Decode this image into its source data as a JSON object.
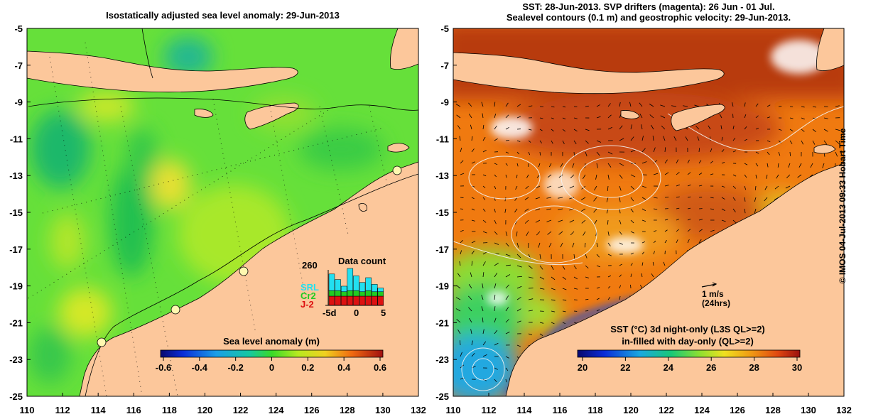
{
  "left_panel": {
    "title": "Isostatically adjusted sea level anomaly: 29-Jun-2013",
    "colorbar": {
      "label": "Sea level anomaly (m)",
      "ticks": [
        "-0.6",
        "-0.4",
        "-0.2",
        "0",
        "0.2",
        "0.4",
        "0.6"
      ]
    },
    "inset": {
      "title": "Data count",
      "max_label": "260",
      "legend": [
        {
          "label": "SRL",
          "color": "#22e0f0"
        },
        {
          "label": "Cr2",
          "color": "#22cc22"
        },
        {
          "label": "J-2",
          "color": "#dd1111"
        }
      ],
      "x_ticks": [
        "-5d",
        "0",
        "5"
      ],
      "bars": [
        {
          "srl": 0.45,
          "cr2": 0.15,
          "j2": 0.25
        },
        {
          "srl": 0.3,
          "cr2": 0.15,
          "j2": 0.25
        },
        {
          "srl": 0.15,
          "cr2": 0.12,
          "j2": 0.25
        },
        {
          "srl": 0.6,
          "cr2": 0.15,
          "j2": 0.25
        },
        {
          "srl": 0.4,
          "cr2": 0.15,
          "j2": 0.25
        },
        {
          "srl": 0.25,
          "cr2": 0.12,
          "j2": 0.25
        },
        {
          "srl": 0.35,
          "cr2": 0.15,
          "j2": 0.25
        },
        {
          "srl": 0.2,
          "cr2": 0.12,
          "j2": 0.25
        },
        {
          "srl": 0.1,
          "cr2": 0.12,
          "j2": 0.25
        }
      ]
    }
  },
  "right_panel": {
    "title_lines": [
      "SST: 28-Jun-2013. SVP drifters (magenta): 26 Jun - 01 Jul.",
      "Sealevel contours (0.1 m) and geostrophic velocity: 29-Jun-2013."
    ],
    "scale_arrow": {
      "label": "1 m/s",
      "sublabel": "(24hrs)"
    },
    "colorbar": {
      "label_lines": [
        "SST (°C)  3d night-only (L3S QL>=2)",
        "in-filled with day-only (QL>=2)"
      ],
      "ticks": [
        "20",
        "22",
        "24",
        "26",
        "28",
        "30"
      ]
    }
  },
  "axes": {
    "x_ticks": [
      "110",
      "112",
      "114",
      "116",
      "118",
      "120",
      "122",
      "124",
      "126",
      "128",
      "130",
      "132"
    ],
    "y_ticks": [
      "-5",
      "-7",
      "-9",
      "-11",
      "-13",
      "-15",
      "-17",
      "-19",
      "-21",
      "-23",
      "-25"
    ]
  },
  "credit": "© IMOS 04-Jul-2013 09:33 Hobart Time",
  "colors": {
    "land": "#fcc79b",
    "ssla_base": "#66e03a",
    "sst_base": "#f07a10"
  }
}
